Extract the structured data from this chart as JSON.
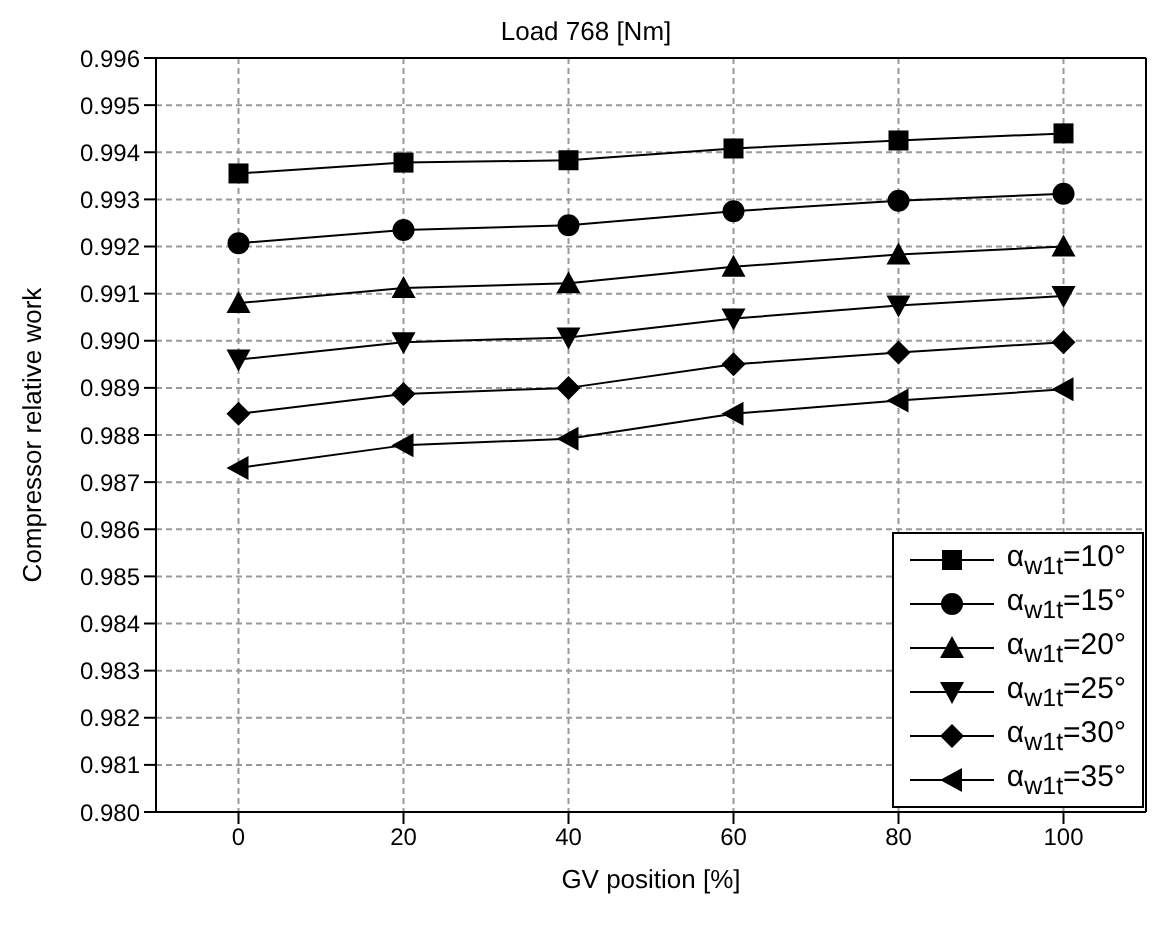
{
  "chart_data": {
    "type": "line",
    "title": "Load 768 [Nm]",
    "xlabel": "GV position [%]",
    "ylabel": "Compressor relative work",
    "x": [
      0,
      20,
      40,
      60,
      80,
      100
    ],
    "series": [
      {
        "name": "α$_{w1t}$=10°",
        "color": "#000000",
        "marker": "square",
        "values": [
          0.99355,
          0.99378,
          0.99383,
          0.99408,
          0.99425,
          0.9944
        ]
      },
      {
        "name": "α$_{w1t}$=15°",
        "color": "#000000",
        "marker": "circle",
        "values": [
          0.99207,
          0.99235,
          0.99245,
          0.99275,
          0.99297,
          0.99312
        ]
      },
      {
        "name": "α$_{w1t}$=20°",
        "color": "#000000",
        "marker": "triangle",
        "values": [
          0.9908,
          0.99112,
          0.99122,
          0.99157,
          0.99183,
          0.992
        ]
      },
      {
        "name": "α$_{w1t}$=25°",
        "color": "#000000",
        "marker": "triangle-down",
        "values": [
          0.9896,
          0.98997,
          0.99007,
          0.99047,
          0.99075,
          0.99095
        ]
      },
      {
        "name": "α$_{w1t}$=30°",
        "color": "#000000",
        "marker": "diamond",
        "values": [
          0.98845,
          0.98887,
          0.989,
          0.9895,
          0.98975,
          0.98997
        ]
      },
      {
        "name": "α$_{w1t}$=35°",
        "color": "#000000",
        "marker": "triangle-left",
        "values": [
          0.9873,
          0.98778,
          0.98792,
          0.98845,
          0.98873,
          0.98897
        ]
      }
    ],
    "xlim": [
      -10,
      110
    ],
    "xticks": [
      0,
      20,
      40,
      60,
      80,
      100
    ],
    "ylim": [
      0.98,
      0.996
    ],
    "yticks": [
      {
        "value": 0.98,
        "label": "0.980"
      },
      {
        "value": 0.981,
        "label": "0.981"
      },
      {
        "value": 0.982,
        "label": "0.982"
      },
      {
        "value": 0.983,
        "label": "0.983"
      },
      {
        "value": 0.984,
        "label": "0.984"
      },
      {
        "value": 0.985,
        "label": "0.985"
      },
      {
        "value": 0.986,
        "label": "0.986"
      },
      {
        "value": 0.987,
        "label": "0.987"
      },
      {
        "value": 0.988,
        "label": "0.988"
      },
      {
        "value": 0.989,
        "label": "0.989"
      },
      {
        "value": 0.99,
        "label": "0.990"
      },
      {
        "value": 0.991,
        "label": "0.991"
      },
      {
        "value": 0.992,
        "label": "0.992"
      },
      {
        "value": 0.993,
        "label": "0.993"
      },
      {
        "value": 0.994,
        "label": "0.994"
      },
      {
        "value": 0.995,
        "label": "0.995"
      },
      {
        "value": 0.996,
        "label": "0.996"
      }
    ],
    "grid": true,
    "legend": "bottom right",
    "line_style": "solid"
  }
}
